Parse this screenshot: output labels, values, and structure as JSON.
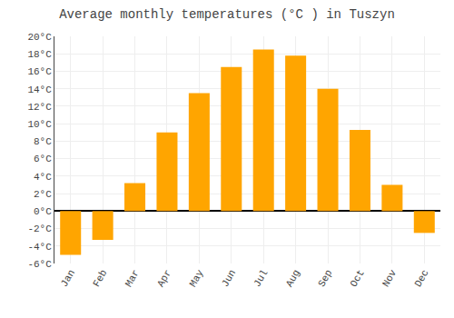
{
  "chart_data": {
    "type": "bar",
    "title": "Average monthly temperatures (°C ) in Tuszyn",
    "categories": [
      "Jan",
      "Feb",
      "Mar",
      "Apr",
      "May",
      "Jun",
      "Jul",
      "Aug",
      "Sep",
      "Oct",
      "Nov",
      "Dec"
    ],
    "values": [
      -5.0,
      -3.3,
      3.2,
      9.0,
      13.5,
      16.5,
      18.5,
      17.8,
      14.0,
      9.3,
      3.0,
      -2.5
    ],
    "color": "#FFA500",
    "ylim": [
      -6,
      20
    ],
    "yticks": [
      {
        "value": -6,
        "label": "-6°C"
      },
      {
        "value": -4,
        "label": "-4°C"
      },
      {
        "value": -2,
        "label": "-2°C"
      },
      {
        "value": 0,
        "label": "0°C"
      },
      {
        "value": 2,
        "label": "2°C"
      },
      {
        "value": 4,
        "label": "4°C"
      },
      {
        "value": 6,
        "label": "6°C"
      },
      {
        "value": 8,
        "label": "8°C"
      },
      {
        "value": 10,
        "label": "10°C"
      },
      {
        "value": 12,
        "label": "12°C"
      },
      {
        "value": 14,
        "label": "14°C"
      },
      {
        "value": 16,
        "label": "16°C"
      },
      {
        "value": 18,
        "label": "18°C"
      },
      {
        "value": 20,
        "label": "20°C"
      }
    ],
    "grid": true
  }
}
